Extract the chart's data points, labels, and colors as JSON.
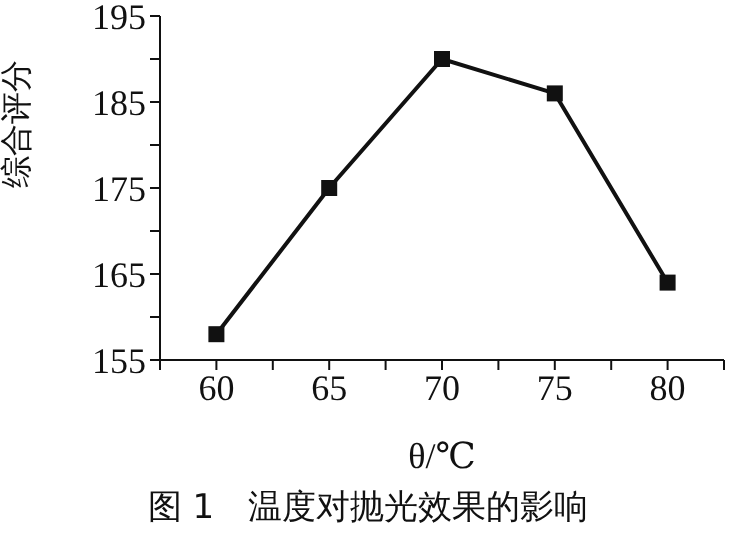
{
  "chart_data": {
    "type": "line",
    "x": [
      60,
      65,
      70,
      75,
      80
    ],
    "series": [
      {
        "color": "#111111",
        "values": [
          158,
          175,
          190,
          186,
          164
        ]
      }
    ],
    "xlabel": "θ/℃",
    "ylabel": "综合评分",
    "annotations": [
      "图 1　温度对抛光效果的影响"
    ],
    "xlim": [
      57.5,
      82.5
    ],
    "xticks": [
      {
        "value": 57.5,
        "label": null
      },
      60,
      {
        "value": 62.5,
        "label": null
      },
      65,
      {
        "value": 67.5,
        "label": null
      },
      70,
      {
        "value": 72.5,
        "label": null
      },
      75,
      {
        "value": 77.5,
        "label": null
      },
      80,
      {
        "value": 82.5,
        "label": null
      }
    ],
    "ylim": [
      155,
      195
    ],
    "yticks": [
      155,
      {
        "value": 160,
        "label": null
      },
      165,
      {
        "value": 170,
        "label": null
      },
      175,
      {
        "value": 180,
        "label": null
      },
      185,
      {
        "value": 190,
        "label": null
      },
      195
    ],
    "grid": false,
    "legend": false,
    "marker": "square",
    "line_style": "solid"
  }
}
